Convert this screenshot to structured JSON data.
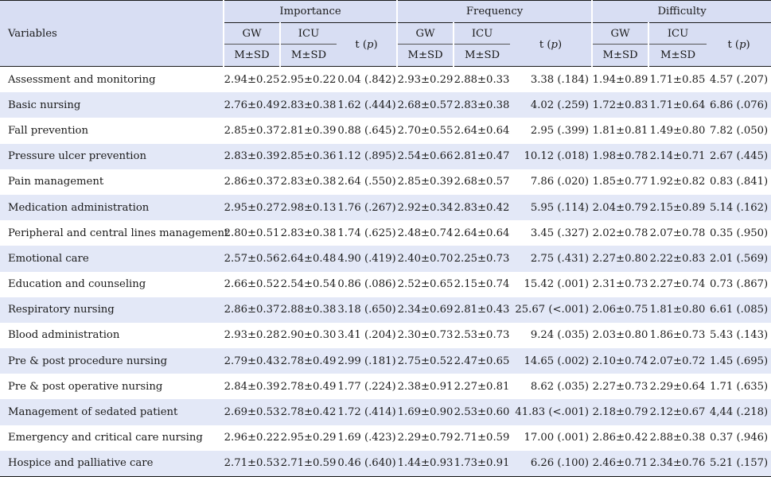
{
  "header": {
    "variables": "Variables",
    "groups": [
      "Importance",
      "Frequency",
      "Difficulty"
    ],
    "gw": "GW",
    "icu": "ICU",
    "msd": "M±SD",
    "tp": "t (p)"
  },
  "rows": [
    {
      "label": "Assessment and monitoring",
      "v": [
        "2.94±0.25",
        "2.95±0.22",
        "0.04 (.842)",
        "2.93±0.29",
        "2.88±0.33",
        "3.38 (.184)",
        "1.94±0.89",
        "1.71±0.85",
        "4.57 (.207)"
      ]
    },
    {
      "label": "Basic nursing",
      "v": [
        "2.76±0.49",
        "2.83±0.38",
        "1.62 (.444)",
        "2.68±0.57",
        "2.83±0.38",
        "4.02 (.259)",
        "1.72±0.83",
        "1.71±0.64",
        "6.86 (.076)"
      ]
    },
    {
      "label": "Fall prevention",
      "v": [
        "2.85±0.37",
        "2.81±0.39",
        "0.88 (.645)",
        "2.70±0.55",
        "2.64±0.64",
        "2.95 (.399)",
        "1.81±0.81",
        "1.49±0.80",
        "7.82 (.050)"
      ]
    },
    {
      "label": "Pressure ulcer prevention",
      "v": [
        "2.83±0.39",
        "2.85±0.36",
        "1.12 (.895)",
        "2.54±0.66",
        "2.81±0.47",
        "10.12 (.018)",
        "1.98±0.78",
        "2.14±0.71",
        "2.67 (.445)"
      ]
    },
    {
      "label": "Pain management",
      "v": [
        "2.86±0.37",
        "2.83±0.38",
        "2.64 (.550)",
        "2.85±0.39",
        "2.68±0.57",
        "7.86 (.020)",
        "1.85±0.77",
        "1.92±0.82",
        "0.83 (.841)"
      ]
    },
    {
      "label": "Medication administration",
      "v": [
        "2.95±0.27",
        "2.98±0.13",
        "1.76 (.267)",
        "2.92±0.34",
        "2.83±0.42",
        "5.95 (.114)",
        "2.04±0.79",
        "2.15±0.89",
        "5.14 (.162)"
      ]
    },
    {
      "label": "Peripheral and central lines management",
      "v": [
        "2.80±0.51",
        "2.83±0.38",
        "1.74 (.625)",
        "2.48±0.74",
        "2.64±0.64",
        "3.45 (.327)",
        "2.02±0.78",
        "2.07±0.78",
        "0.35 (.950)"
      ]
    },
    {
      "label": "Emotional care",
      "v": [
        "2.57±0.56",
        "2.64±0.48",
        "4.90 (.419)",
        "2.40±0.70",
        "2.25±0.73",
        "2.75 (.431)",
        "2.27±0.80",
        "2.22±0.83",
        "2.01 (.569)"
      ]
    },
    {
      "label": "Education and counseling",
      "v": [
        "2.66±0.52",
        "2.54±0.54",
        "0.86 (.086)",
        "2.52±0.65",
        "2.15±0.74",
        "15.42 (.001)",
        "2.31±0.73",
        "2.27±0.74",
        "0.73 (.867)"
      ]
    },
    {
      "label": "Respiratory nursing",
      "v": [
        "2.86±0.37",
        "2.88±0.38",
        "3.18 (.650)",
        "2.34±0.69",
        "2.81±0.43",
        "25.67 (<.001)",
        "2.06±0.75",
        "1.81±0.80",
        "6.61 (.085)"
      ]
    },
    {
      "label": "Blood administration",
      "v": [
        "2.93±0.28",
        "2.90±0.30",
        "3.41 (.204)",
        "2.30±0.73",
        "2.53±0.73",
        "9.24 (.035)",
        "2.03±0.80",
        "1.86±0.73",
        "5.43 (.143)"
      ]
    },
    {
      "label": "Pre & post procedure nursing",
      "v": [
        "2.79±0.43",
        "2.78±0.49",
        "2.99 (.181)",
        "2.75±0.52",
        "2.47±0.65",
        "14.65 (.002)",
        "2.10±0.74",
        "2.07±0.72",
        "1.45 (.695)"
      ]
    },
    {
      "label": "Pre & post operative nursing",
      "v": [
        "2.84±0.39",
        "2.78±0.49",
        "1.77 (.224)",
        "2.38±0.91",
        "2.27±0.81",
        "8.62 (.035)",
        "2.27±0.73",
        "2.29±0.64",
        "1.71 (.635)"
      ]
    },
    {
      "label": "Management of sedated patient",
      "v": [
        "2.69±0.53",
        "2.78±0.42",
        "1.72 (.414)",
        "1.69±0.90",
        "2.53±0.60",
        "41.83 (<.001)",
        "2.18±0.79",
        "2.12±0.67",
        "4,44 (.218)"
      ]
    },
    {
      "label": "Emergency and critical care nursing",
      "v": [
        "2.96±0.22",
        "2.95±0.29",
        "1.69 (.423)",
        "2.29±0.79",
        "2.71±0.59",
        "17.00 (.001)",
        "2.86±0.42",
        "2.88±0.38",
        "0.37 (.946)"
      ]
    },
    {
      "label": "Hospice and palliative care",
      "v": [
        "2.71±0.53",
        "2.71±0.59",
        "0.46 (.640)",
        "1.44±0.93",
        "1.73±0.91",
        "6.26 (.100)",
        "2.46±0.71",
        "2.34±0.76",
        "5.21 (.157)"
      ]
    }
  ]
}
